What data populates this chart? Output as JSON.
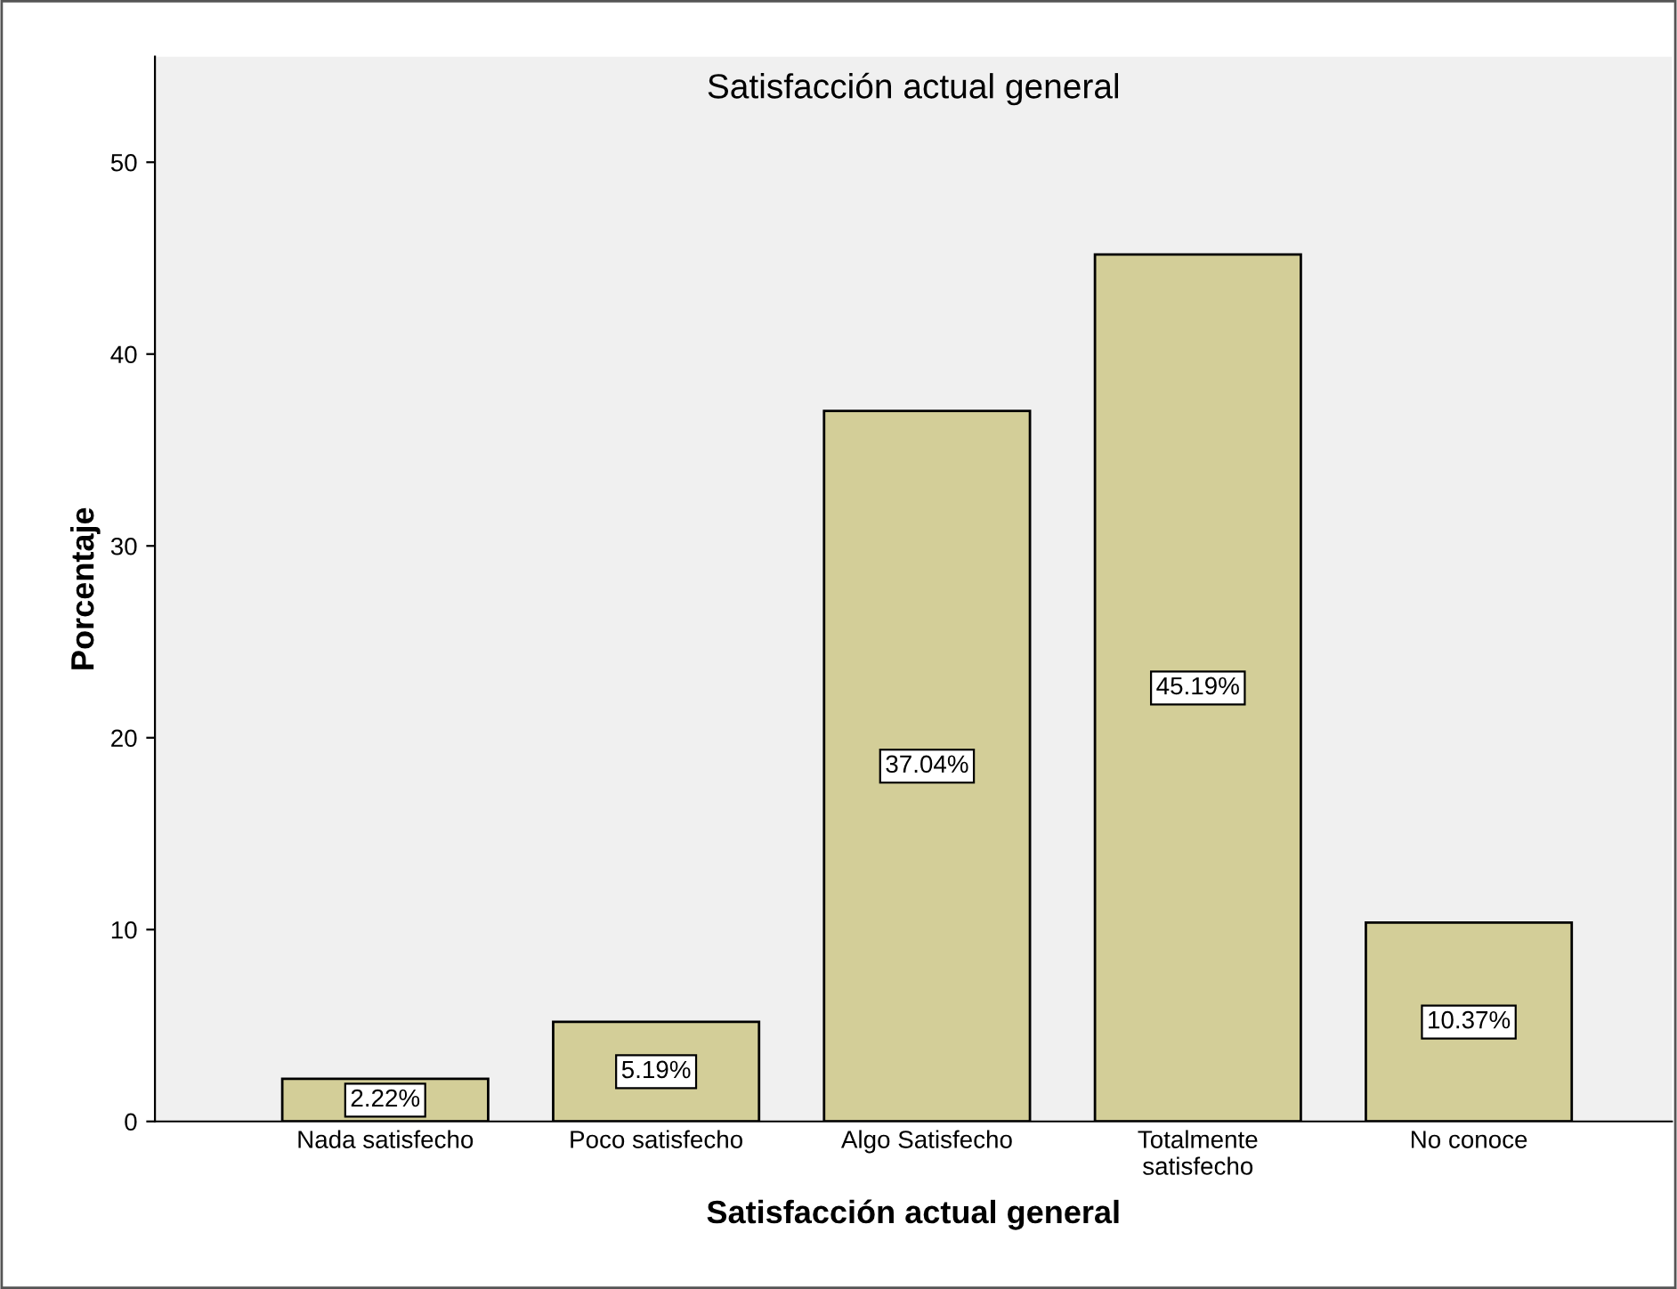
{
  "chart_data": {
    "type": "bar",
    "title": "Satisfacción actual general",
    "xlabel": "Satisfacción actual general",
    "ylabel": "Porcentaje",
    "categories": [
      "Nada satisfecho",
      "Poco satisfecho",
      "Algo Satisfecho",
      "Totalmente\nsatisfecho",
      "No conoce"
    ],
    "values": [
      2.22,
      5.19,
      37.04,
      45.19,
      10.37
    ],
    "value_labels": [
      "2.22%",
      "5.19%",
      "37.04%",
      "45.19%",
      "10.37%"
    ],
    "color": "#d3ce98",
    "ylim": [
      0,
      55.5
    ],
    "yticks": [
      0,
      10,
      20,
      30,
      40,
      50
    ],
    "grid": false,
    "legend": false
  }
}
